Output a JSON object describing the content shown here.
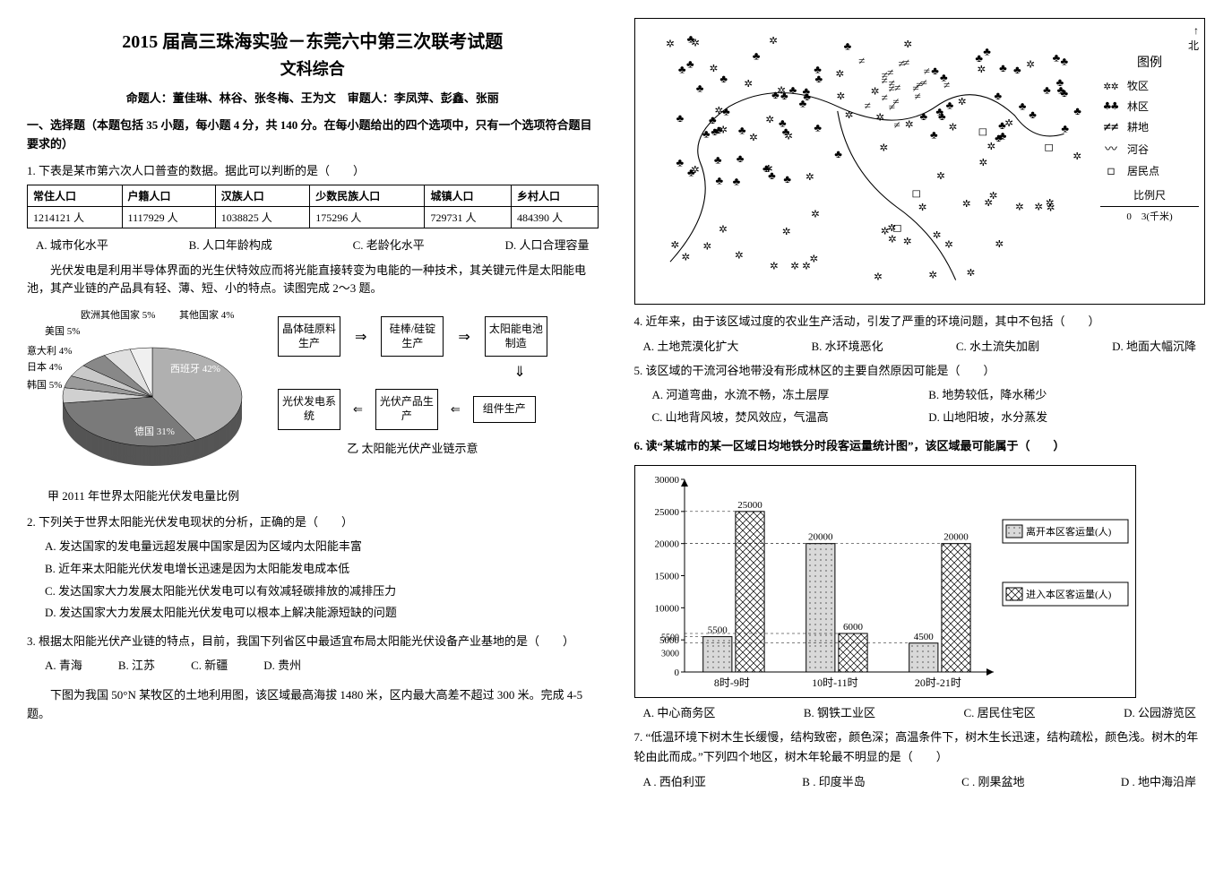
{
  "header": {
    "title": "2015 届高三珠海实验－东莞六中第三次联考试题",
    "subtitle": "文科综合",
    "authors": "命题人：董佳琳、林谷、张冬梅、王为文　审题人：李凤萍、彭鑫、张丽"
  },
  "section1": "一、选择题（本题包括 35 小题，每小题 4 分，共 140 分。在每小题给出的四个选项中，只有一个选项符合题目要求的）",
  "q1": {
    "stem": "1. 下表是某市第六次人口普查的数据。据此可以判断的是（　　）",
    "table": {
      "headers": [
        "常住人口",
        "户籍人口",
        "汉族人口",
        "少数民族人口",
        "城镇人口",
        "乡村人口"
      ],
      "row": [
        "1214121 人",
        "1117929 人",
        "1038825 人",
        "175296 人",
        "729731 人",
        "484390 人"
      ]
    },
    "A": "A. 城市化水平",
    "B": "B. 人口年龄构成",
    "C": "C. 老龄化水平",
    "D": "D. 人口合理容量"
  },
  "intro23": "光伏发电是利用半导体界面的光生伏特效应而将光能直接转变为电能的一种技术，其关键元件是太阳能电池，其产业链的产品具有轻、薄、短、小的特点。读图完成 2～3 题。",
  "pie": {
    "title": "甲 2011 年世界太阳能光伏发电量比例",
    "slices": [
      {
        "label": "西班牙 42%",
        "value": 42,
        "color": "#b0b0b0"
      },
      {
        "label": "德国 31%",
        "value": 31,
        "color": "#7a7a7a",
        "pattern": "diag"
      },
      {
        "label": "韩国 5%",
        "value": 5,
        "color": "#d0d0d0",
        "pattern": "grid"
      },
      {
        "label": "日本 4%",
        "value": 4,
        "color": "#9a9a9a",
        "pattern": "hstripe"
      },
      {
        "label": "意大利 4%",
        "value": 4,
        "color": "#c8c8c8"
      },
      {
        "label": "美国 5%",
        "value": 5,
        "color": "#888888",
        "pattern": "cross"
      },
      {
        "label": "欧洲其他国家 5%",
        "value": 5,
        "color": "#e0e0e0"
      },
      {
        "label": "其他国家 4%",
        "value": 4,
        "color": "#f0f0f0"
      }
    ],
    "label_pos": {
      "欧洲其他国家 5%": "top:0px;left:60px;",
      "其他国家 4%": "top:0px;left:170px;",
      "美国 5%": "top:18px;left:20px;",
      "意大利 4%": "top:40px;left:0px;",
      "日本 4%": "top:58px;left:0px;",
      "韩国 5%": "top:78px;left:0px;",
      "西班牙 42%": "top:60px;left:160px;color:#fff;",
      "德国 31%": "top:130px;left:120px;color:#fff;"
    }
  },
  "flow": {
    "title": "乙 太阳能光伏产业链示意",
    "r1": [
      "晶体硅原料生产",
      "硅棒/硅锭生产",
      "太阳能电池制造"
    ],
    "r2": [
      "光伏发电系统",
      "光伏产品生产",
      "组件生产"
    ]
  },
  "q2": {
    "stem": "2. 下列关于世界太阳能光伏发电现状的分析，正确的是（　　）",
    "A": "A. 发达国家的发电量远超发展中国家是因为区域内太阳能丰富",
    "B": "B. 近年来太阳能光伏发电增长迅速是因为太阳能发电成本低",
    "C": "C. 发达国家大力发展太阳能光伏发电可以有效减轻碳排放的减排压力",
    "D": "D. 发达国家大力发展太阳能光伏发电可以根本上解决能源短缺的问题"
  },
  "q3": {
    "stem": "3. 根据太阳能光伏产业链的特点，目前，我国下列省区中最适宜布局太阳能光伏设备产业基地的是（　　）",
    "A": "A. 青海",
    "B": "B. 江苏",
    "C": "C. 新疆",
    "D": "D. 贵州"
  },
  "intro45": "下图为我国 50°N 某牧区的土地利用图，该区域最高海拔 1480 米，区内最大高差不超过 300 米。完成 4-5 题。",
  "map": {
    "legend_title": "图例",
    "items": [
      {
        "sym": "✲✲",
        "label": "牧区"
      },
      {
        "sym": "♣♣",
        "label": "林区"
      },
      {
        "sym": "≠≠",
        "label": "耕地"
      },
      {
        "sym": "〰",
        "label": "河谷"
      },
      {
        "sym": "◻",
        "label": "居民点"
      }
    ],
    "scale_label": "比例尺",
    "scale": "0　3(千米)",
    "north": "北"
  },
  "q4": {
    "stem": "4. 近年来，由于该区域过度的农业生产活动，引发了严重的环境问题，其中不包括（　　）",
    "A": "A. 土地荒漠化扩大",
    "B": "B. 水环境恶化",
    "C": "C. 水土流失加剧",
    "D": "D. 地面大幅沉降"
  },
  "q5": {
    "stem": "5. 该区域的干流河谷地带没有形成林区的主要自然原因可能是（　　）",
    "A": "A. 河道弯曲，水流不畅，冻土层厚",
    "B": "B. 地势较低，降水稀少",
    "C": "C. 山地背风坡，焚风效应，气温高",
    "D": "D. 山地阳坡，水分蒸发"
  },
  "q6": {
    "stem": "6. 读“某城市的某一区域日均地铁分时段客运量统计图”，该区域最可能属于（　　）",
    "chart": {
      "ylim": [
        0,
        30000
      ],
      "yticks": [
        0,
        5000,
        10000,
        15000,
        20000,
        25000,
        30000
      ],
      "extra_ticks": [
        3000,
        5500
      ],
      "categories": [
        "8时-9时",
        "10时-11时",
        "20时-21时"
      ],
      "series": [
        {
          "name": "离开本区客运量(人)",
          "pattern": "solid",
          "color": "#d9d9d9",
          "values": [
            5500,
            20000,
            4500
          ]
        },
        {
          "name": "进入本区客运量(人)",
          "pattern": "cross",
          "color": "#ffffff",
          "values": [
            25000,
            6000,
            20000
          ]
        }
      ],
      "value_labels": {
        "8时-9时": [
          5500,
          25000
        ],
        "10时-11时": [
          20000,
          6000
        ],
        "20时-21时": [
          4500,
          20000
        ]
      }
    },
    "A": "A. 中心商务区",
    "B": "B. 钢铁工业区",
    "C": "C. 居民住宅区",
    "D": "D. 公园游览区"
  },
  "q7": {
    "stem": "7. “低温环境下树木生长缓慢，结构致密，颜色深；高温条件下，树木生长迅速，结构疏松，颜色浅。树木的年轮由此而成。”下列四个地区，树木年轮最不明显的是（　　）",
    "A": "A . 西伯利亚",
    "B": "B . 印度半岛",
    "C": "C . 刚果盆地",
    "D": "D . 地中海沿岸"
  }
}
